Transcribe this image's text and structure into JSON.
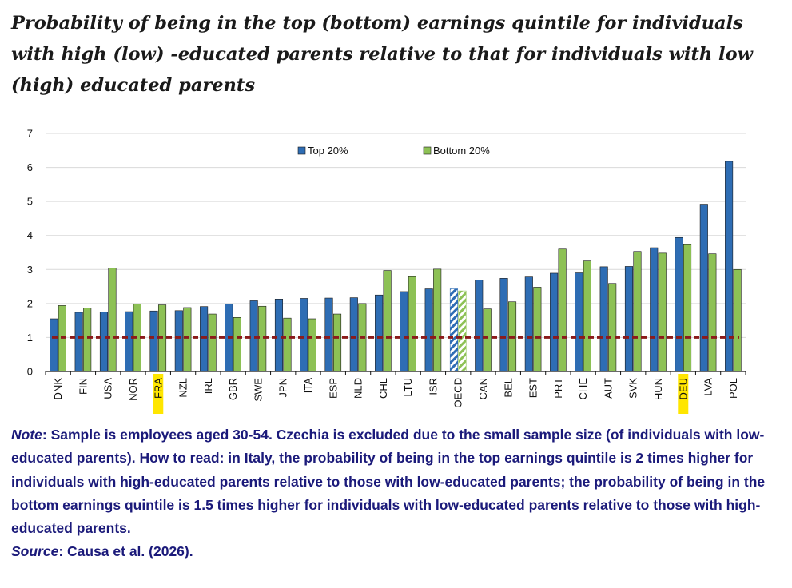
{
  "title": "Probability of being in the top (bottom) earnings quintile for individuals with high (low) -educated parents relative to that for individuals with low (high) educated parents",
  "note": {
    "note_label": "Note",
    "note_text": ": Sample is employees aged 30-54. Czechia is excluded due to the small sample size (of individuals with low-educated parents). How to read: in Italy, the probability of being in the top earnings quintile is 2 times higher for individuals with high-educated parents relative to those with low-educated parents; the probability of being in the bottom earnings quintile is 1.5 times higher for individuals with low-educated parents relative to those with high-educated parents.",
    "source_label": "Source",
    "source_text": ": Causa et al. (2026)."
  },
  "chart_data": {
    "type": "bar",
    "title": "",
    "xlabel": "",
    "ylabel": "",
    "ylim": [
      0,
      7
    ],
    "yticks": [
      "0",
      "1",
      "2",
      "3",
      "4",
      "5",
      "6",
      "7"
    ],
    "categories": [
      "DNK",
      "FIN",
      "USA",
      "NOR",
      "FRA",
      "NZL",
      "IRL",
      "GBR",
      "SWE",
      "JPN",
      "ITA",
      "ESP",
      "NLD",
      "CHL",
      "LTU",
      "ISR",
      "OECD",
      "CAN",
      "BEL",
      "EST",
      "PRT",
      "CHE",
      "AUT",
      "SVK",
      "HUN",
      "DEU",
      "LVA",
      "POL"
    ],
    "series": [
      {
        "name": "Top 20%",
        "color": "#2e6db4",
        "values": [
          1.55,
          1.74,
          1.75,
          1.76,
          1.78,
          1.79,
          1.91,
          1.99,
          2.08,
          2.13,
          2.15,
          2.16,
          2.17,
          2.25,
          2.35,
          2.43,
          2.43,
          2.69,
          2.74,
          2.78,
          2.89,
          2.9,
          3.08,
          3.09,
          3.64,
          3.94,
          4.92,
          6.18
        ]
      },
      {
        "name": "Bottom 20%",
        "color": "#8dc155",
        "values": [
          1.94,
          1.87,
          3.04,
          1.99,
          1.96,
          1.88,
          1.69,
          1.59,
          1.92,
          1.57,
          1.55,
          1.69,
          2.0,
          2.97,
          2.79,
          3.01,
          2.37,
          1.84,
          2.05,
          2.48,
          3.6,
          3.25,
          2.59,
          3.53,
          3.48,
          3.73,
          3.46,
          3.0
        ]
      }
    ],
    "reference_line": {
      "value": 1,
      "color": "#8b1a1a",
      "style": "dashed"
    },
    "highlighted_categories": [
      "FRA",
      "DEU"
    ],
    "highlight_color": "#ffe600",
    "hatched_category": "OECD",
    "legend": {
      "position": "top-center"
    }
  }
}
